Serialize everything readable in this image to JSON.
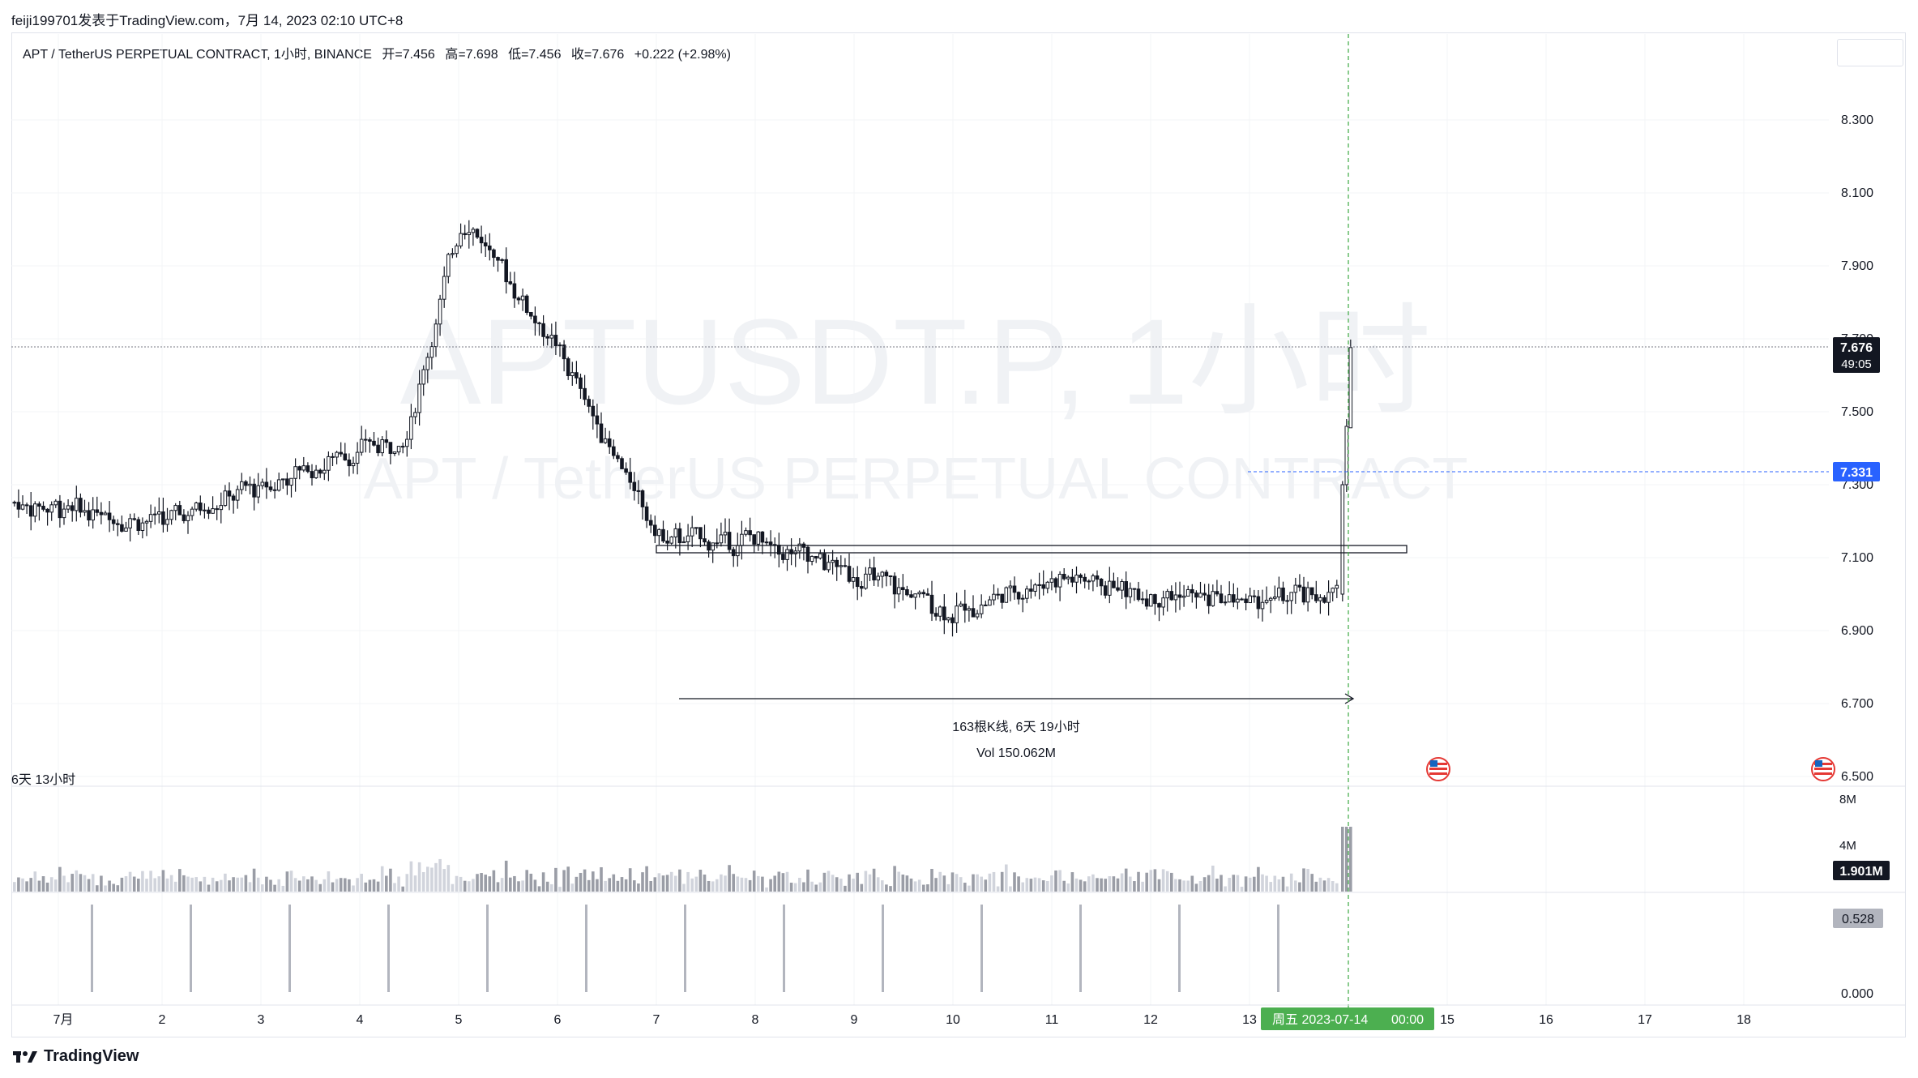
{
  "header": {
    "publish_line": "feiji199701发表于TradingView.com，7月 14, 2023 02:10 UTC+8"
  },
  "legend": {
    "symbol": "APT / TetherUS PERPETUAL CONTRACT, 1小时, BINANCE",
    "open": "开=7.456",
    "high": "高=7.698",
    "low": "低=7.456",
    "close": "收=7.676",
    "change": "+0.222 (+2.98%)"
  },
  "watermark": {
    "line1": "APTUSDT.P, 1小时",
    "line2": "APT / TetherUS PERPETUAL CONTRACT"
  },
  "measure": {
    "bars_text": "163根K线, 6天 19小时",
    "vol_text": "Vol 150.062M"
  },
  "vol_pane_label": "6天 13小时",
  "price_axis": {
    "ticks": [
      "8.300",
      "8.100",
      "7.900",
      "7.700",
      "7.500",
      "7.300",
      "7.100",
      "6.900",
      "6.700",
      "6.500"
    ],
    "current_price": "7.676",
    "countdown": "49:05",
    "crosshair_price": "7.331"
  },
  "volume_axis": {
    "ticks": [
      "8M",
      "4M"
    ],
    "current": "1.901M"
  },
  "indicator_axis": {
    "value": "0.528",
    "zero": "0.000"
  },
  "time_axis": {
    "labels": [
      "7月",
      "2",
      "3",
      "4",
      "5",
      "6",
      "7",
      "8",
      "9",
      "10",
      "11",
      "12",
      "13",
      "15",
      "16",
      "17",
      "18"
    ],
    "crosshair_label": "周五 2023-07-14",
    "crosshair_time": "00:00"
  },
  "footer": {
    "brand": "TradingView"
  },
  "colors": {
    "candle": "#131722",
    "crosshair": "#4caf50",
    "price_label_bg": "#131722",
    "crosshair_price_bg": "#2962ff",
    "volume_bar": "#9a9da6",
    "indicator_bar": "#b2b5be"
  },
  "chart_data": {
    "type": "candlestick",
    "symbol": "APT / TetherUS PERPETUAL CONTRACT",
    "interval": "1小时",
    "exchange": "BINANCE",
    "ylim": [
      6.5,
      8.3
    ],
    "last_candle": {
      "open": 7.456,
      "high": 7.698,
      "low": 7.456,
      "close": 7.676
    },
    "key_levels": {
      "range_top": 7.12,
      "range_bottom": 7.1,
      "dashed_level": 7.331
    },
    "daily_path": {
      "dates": [
        "7月",
        "2",
        "3",
        "4",
        "5",
        "6",
        "7",
        "8",
        "9",
        "10",
        "11",
        "12",
        "13",
        "14"
      ],
      "close_est": [
        7.25,
        7.2,
        7.3,
        7.4,
        8.05,
        7.65,
        7.15,
        7.15,
        7.05,
        6.95,
        7.05,
        7.0,
        6.98,
        7.676
      ]
    },
    "volume_max_M": 8,
    "volume_current_M": 1.901,
    "indicator_current": 0.528
  }
}
